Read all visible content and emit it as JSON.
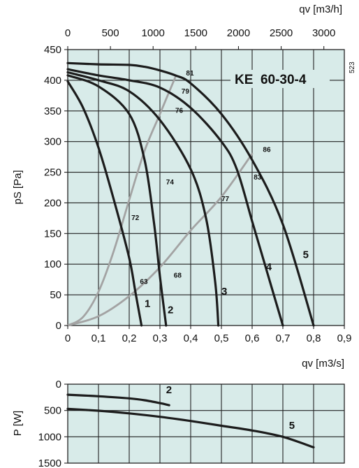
{
  "chart_data": [
    {
      "type": "line",
      "title": "KE  60-30-4",
      "side_code": "523",
      "xlabel": "qv [m3/s]",
      "x_top_label": "qv [m3/h]",
      "ylabel": "pS [Pa]",
      "xlim": [
        0,
        0.9
      ],
      "ylim": [
        0,
        450
      ],
      "x_ticks": [
        "0",
        "0,1",
        "0,2",
        "0,3",
        "0,4",
        "0,5",
        "0,6",
        "0,7",
        "0,8",
        "0,9"
      ],
      "x_tick_values": [
        0,
        0.1,
        0.2,
        0.3,
        0.4,
        0.5,
        0.6,
        0.7,
        0.8,
        0.9
      ],
      "y_ticks": [
        "0",
        "50",
        "100",
        "150",
        "200",
        "250",
        "300",
        "350",
        "400",
        "450"
      ],
      "y_tick_values": [
        0,
        50,
        100,
        150,
        200,
        250,
        300,
        350,
        400,
        450
      ],
      "x_top_ticks": [
        "0",
        "500",
        "1000",
        "1500",
        "2000",
        "2500",
        "3000"
      ],
      "x_top_tick_values": [
        0,
        500,
        1000,
        1500,
        2000,
        2500,
        3000
      ],
      "grid": true,
      "series": [
        {
          "name": "1",
          "x": [
            0,
            0.05,
            0.1,
            0.15,
            0.2,
            0.22,
            0.24
          ],
          "y": [
            398,
            355,
            290,
            205,
            110,
            55,
            0
          ]
        },
        {
          "name": "2",
          "x": [
            0,
            0.1,
            0.2,
            0.25,
            0.28,
            0.3,
            0.32
          ],
          "y": [
            408,
            390,
            345,
            270,
            170,
            80,
            0
          ]
        },
        {
          "name": "3",
          "x": [
            0,
            0.1,
            0.2,
            0.3,
            0.4,
            0.45,
            0.48,
            0.49
          ],
          "y": [
            413,
            400,
            382,
            335,
            255,
            175,
            70,
            0
          ]
        },
        {
          "name": "4",
          "x": [
            0,
            0.1,
            0.2,
            0.3,
            0.4,
            0.5,
            0.55,
            0.6,
            0.65,
            0.7
          ],
          "y": [
            418,
            408,
            400,
            388,
            355,
            300,
            255,
            170,
            85,
            0
          ]
        },
        {
          "name": "5",
          "x": [
            0,
            0.1,
            0.2,
            0.25,
            0.3,
            0.35,
            0.4,
            0.5,
            0.6,
            0.7,
            0.8
          ],
          "y": [
            428,
            426,
            425,
            422,
            416,
            408,
            395,
            345,
            270,
            165,
            0
          ]
        }
      ],
      "efficiency_curves": [
        {
          "x": [
            0,
            0.05,
            0.1,
            0.15,
            0.2,
            0.25,
            0.3,
            0.35
          ],
          "y": [
            0,
            14,
            55,
            122,
            205,
            285,
            345,
            405
          ]
        },
        {
          "x": [
            0,
            0.1,
            0.2,
            0.3,
            0.4,
            0.5,
            0.6
          ],
          "y": [
            0,
            15,
            48,
            95,
            155,
            210,
            280
          ]
        }
      ],
      "efficiency_labels": [
        {
          "text": "63",
          "x": 0.235,
          "y": 68
        },
        {
          "text": "72",
          "x": 0.207,
          "y": 172
        },
        {
          "text": "74",
          "x": 0.32,
          "y": 230
        },
        {
          "text": "76",
          "x": 0.35,
          "y": 347
        },
        {
          "text": "79",
          "x": 0.37,
          "y": 378
        },
        {
          "text": "81",
          "x": 0.385,
          "y": 408
        },
        {
          "text": "68",
          "x": 0.345,
          "y": 78
        },
        {
          "text": "77",
          "x": 0.5,
          "y": 203
        },
        {
          "text": "83",
          "x": 0.605,
          "y": 238
        },
        {
          "text": "86",
          "x": 0.635,
          "y": 283
        }
      ],
      "curve_labels": [
        {
          "text": "1",
          "x": 0.25,
          "y": 30
        },
        {
          "text": "2",
          "x": 0.325,
          "y": 20
        },
        {
          "text": "3",
          "x": 0.5,
          "y": 50
        },
        {
          "text": "4",
          "x": 0.645,
          "y": 90
        },
        {
          "text": "5",
          "x": 0.765,
          "y": 110
        }
      ]
    },
    {
      "type": "line",
      "ylabel": "P [W]",
      "ylim": [
        0,
        1500
      ],
      "y_inverted": true,
      "xlim": [
        0,
        0.9
      ],
      "y_ticks": [
        "0",
        "500",
        "1000",
        "1500"
      ],
      "y_tick_values": [
        0,
        500,
        1000,
        1500
      ],
      "grid": true,
      "series": [
        {
          "name": "2",
          "x": [
            0,
            0.1,
            0.2,
            0.25,
            0.3,
            0.33
          ],
          "y": [
            200,
            230,
            270,
            305,
            360,
            400
          ]
        },
        {
          "name": "5",
          "x": [
            0,
            0.1,
            0.2,
            0.3,
            0.4,
            0.5,
            0.6,
            0.7,
            0.8
          ],
          "y": [
            470,
            505,
            555,
            620,
            700,
            790,
            880,
            1000,
            1200
          ]
        }
      ],
      "curve_labels": [
        {
          "text": "2",
          "x": 0.32,
          "y": 170
        },
        {
          "text": "5",
          "x": 0.72,
          "y": 850
        }
      ]
    }
  ]
}
